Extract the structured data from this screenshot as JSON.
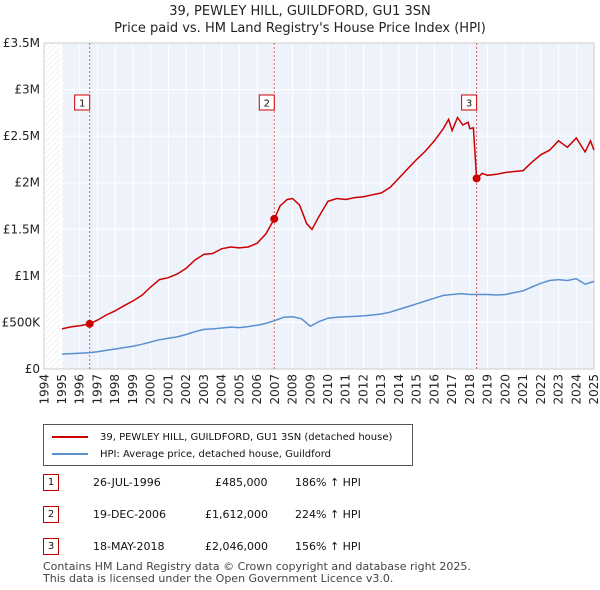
{
  "chart_data": {
    "type": "line",
    "title": "39, PEWLEY HILL, GUILDFORD, GU1 3SN",
    "subtitle": "Price paid vs. HM Land Registry's House Price Index (HPI)",
    "xlabel": "",
    "ylabel": "",
    "xlim": [
      1994,
      2025
    ],
    "ylim": [
      0,
      3500000
    ],
    "y_ticks": [
      {
        "value": 0,
        "label": "£0"
      },
      {
        "value": 500000,
        "label": "£500K"
      },
      {
        "value": 1000000,
        "label": "£1M"
      },
      {
        "value": 1500000,
        "label": "£1.5M"
      },
      {
        "value": 2000000,
        "label": "£2M"
      },
      {
        "value": 2500000,
        "label": "£2.5M"
      },
      {
        "value": 3000000,
        "label": "£3M"
      },
      {
        "value": 3500000,
        "label": "£3.5M"
      }
    ],
    "x_ticks": [
      "1994",
      "1995",
      "1996",
      "1997",
      "1998",
      "1999",
      "2000",
      "2001",
      "2002",
      "2003",
      "2004",
      "2005",
      "2006",
      "2007",
      "2008",
      "2009",
      "2010",
      "2011",
      "2012",
      "2013",
      "2014",
      "2015",
      "2016",
      "2017",
      "2018",
      "2019",
      "2020",
      "2021",
      "2022",
      "2023",
      "2024",
      "2025"
    ],
    "series": [
      {
        "name": "39, PEWLEY HILL, GUILDFORD, GU1 3SN (detached house)",
        "color": "#cc0000",
        "points": [
          [
            1995.0,
            430000
          ],
          [
            1995.3,
            445000
          ],
          [
            1995.6,
            455000
          ],
          [
            1996.0,
            465000
          ],
          [
            1996.3,
            475000
          ],
          [
            1996.56,
            485000
          ],
          [
            1997.0,
            525000
          ],
          [
            1997.5,
            580000
          ],
          [
            1998.0,
            625000
          ],
          [
            1998.5,
            680000
          ],
          [
            1999.0,
            730000
          ],
          [
            1999.5,
            790000
          ],
          [
            2000.0,
            880000
          ],
          [
            2000.5,
            960000
          ],
          [
            2001.0,
            980000
          ],
          [
            2001.5,
            1020000
          ],
          [
            2002.0,
            1080000
          ],
          [
            2002.5,
            1170000
          ],
          [
            2003.0,
            1230000
          ],
          [
            2003.5,
            1240000
          ],
          [
            2004.0,
            1290000
          ],
          [
            2004.5,
            1310000
          ],
          [
            2005.0,
            1300000
          ],
          [
            2005.5,
            1310000
          ],
          [
            2006.0,
            1350000
          ],
          [
            2006.5,
            1450000
          ],
          [
            2006.97,
            1612000
          ],
          [
            2007.3,
            1750000
          ],
          [
            2007.7,
            1820000
          ],
          [
            2008.0,
            1830000
          ],
          [
            2008.4,
            1760000
          ],
          [
            2008.8,
            1560000
          ],
          [
            2009.1,
            1500000
          ],
          [
            2009.5,
            1640000
          ],
          [
            2010.0,
            1800000
          ],
          [
            2010.5,
            1830000
          ],
          [
            2011.0,
            1820000
          ],
          [
            2011.5,
            1840000
          ],
          [
            2012.0,
            1850000
          ],
          [
            2012.5,
            1870000
          ],
          [
            2013.0,
            1890000
          ],
          [
            2013.5,
            1950000
          ],
          [
            2014.0,
            2050000
          ],
          [
            2014.5,
            2150000
          ],
          [
            2015.0,
            2250000
          ],
          [
            2015.5,
            2340000
          ],
          [
            2016.0,
            2450000
          ],
          [
            2016.5,
            2580000
          ],
          [
            2016.8,
            2680000
          ],
          [
            2017.0,
            2560000
          ],
          [
            2017.3,
            2700000
          ],
          [
            2017.6,
            2620000
          ],
          [
            2017.9,
            2650000
          ],
          [
            2018.0,
            2580000
          ],
          [
            2018.2,
            2590000
          ],
          [
            2018.38,
            2046000
          ],
          [
            2018.7,
            2100000
          ],
          [
            2019.0,
            2080000
          ],
          [
            2019.5,
            2090000
          ],
          [
            2020.0,
            2110000
          ],
          [
            2020.5,
            2120000
          ],
          [
            2021.0,
            2130000
          ],
          [
            2021.5,
            2220000
          ],
          [
            2022.0,
            2300000
          ],
          [
            2022.5,
            2350000
          ],
          [
            2023.0,
            2450000
          ],
          [
            2023.5,
            2380000
          ],
          [
            2024.0,
            2480000
          ],
          [
            2024.5,
            2330000
          ],
          [
            2024.8,
            2450000
          ],
          [
            2025.0,
            2350000
          ]
        ]
      },
      {
        "name": "HPI: Average price, detached house, Guildford",
        "color": "#5b8fd0",
        "points": [
          [
            1995.0,
            160000
          ],
          [
            1995.5,
            165000
          ],
          [
            1996.0,
            170000
          ],
          [
            1996.5,
            175000
          ],
          [
            1997.0,
            185000
          ],
          [
            1997.5,
            200000
          ],
          [
            1998.0,
            215000
          ],
          [
            1998.5,
            230000
          ],
          [
            1999.0,
            245000
          ],
          [
            1999.5,
            265000
          ],
          [
            2000.0,
            290000
          ],
          [
            2000.5,
            315000
          ],
          [
            2001.0,
            330000
          ],
          [
            2001.5,
            345000
          ],
          [
            2002.0,
            370000
          ],
          [
            2002.5,
            400000
          ],
          [
            2003.0,
            425000
          ],
          [
            2003.5,
            430000
          ],
          [
            2004.0,
            440000
          ],
          [
            2004.5,
            450000
          ],
          [
            2005.0,
            445000
          ],
          [
            2005.5,
            455000
          ],
          [
            2006.0,
            470000
          ],
          [
            2006.5,
            490000
          ],
          [
            2007.0,
            520000
          ],
          [
            2007.5,
            555000
          ],
          [
            2008.0,
            560000
          ],
          [
            2008.5,
            540000
          ],
          [
            2009.0,
            460000
          ],
          [
            2009.5,
            510000
          ],
          [
            2010.0,
            545000
          ],
          [
            2010.5,
            555000
          ],
          [
            2011.0,
            560000
          ],
          [
            2011.5,
            565000
          ],
          [
            2012.0,
            570000
          ],
          [
            2012.5,
            580000
          ],
          [
            2013.0,
            590000
          ],
          [
            2013.5,
            610000
          ],
          [
            2014.0,
            640000
          ],
          [
            2014.5,
            670000
          ],
          [
            2015.0,
            700000
          ],
          [
            2015.5,
            730000
          ],
          [
            2016.0,
            760000
          ],
          [
            2016.5,
            790000
          ],
          [
            2017.0,
            800000
          ],
          [
            2017.5,
            810000
          ],
          [
            2018.0,
            800000
          ],
          [
            2018.5,
            800000
          ],
          [
            2019.0,
            800000
          ],
          [
            2019.5,
            795000
          ],
          [
            2020.0,
            800000
          ],
          [
            2020.5,
            820000
          ],
          [
            2021.0,
            840000
          ],
          [
            2021.5,
            880000
          ],
          [
            2022.0,
            920000
          ],
          [
            2022.5,
            950000
          ],
          [
            2023.0,
            960000
          ],
          [
            2023.5,
            950000
          ],
          [
            2024.0,
            970000
          ],
          [
            2024.5,
            910000
          ],
          [
            2025.0,
            940000
          ]
        ]
      }
    ],
    "sale_markers": [
      {
        "label": "1",
        "year": 1996.56,
        "price": 485000
      },
      {
        "label": "2",
        "year": 2006.97,
        "price": 1612000
      },
      {
        "label": "3",
        "year": 2018.38,
        "price": 2046000
      }
    ],
    "grid": true
  },
  "legend": {
    "property_label": "39, PEWLEY HILL, GUILDFORD, GU1 3SN (detached house)",
    "hpi_label": "HPI: Average price, detached house, Guildford"
  },
  "sales": [
    {
      "num": "1",
      "date": "26-JUL-1996",
      "price": "£485,000",
      "hpi": "186% ↑ HPI"
    },
    {
      "num": "2",
      "date": "19-DEC-2006",
      "price": "£1,612,000",
      "hpi": "224% ↑ HPI"
    },
    {
      "num": "3",
      "date": "18-MAY-2018",
      "price": "£2,046,000",
      "hpi": "156% ↑ HPI"
    }
  ],
  "footer": {
    "line1": "Contains HM Land Registry data © Crown copyright and database right 2025.",
    "line2": "This data is licensed under the Open Government Licence v3.0."
  },
  "colors": {
    "property": "#cc0000",
    "hpi": "#5b8fd0",
    "plot_bg": "#eef3fb",
    "shaded": "#f2f5fb"
  }
}
